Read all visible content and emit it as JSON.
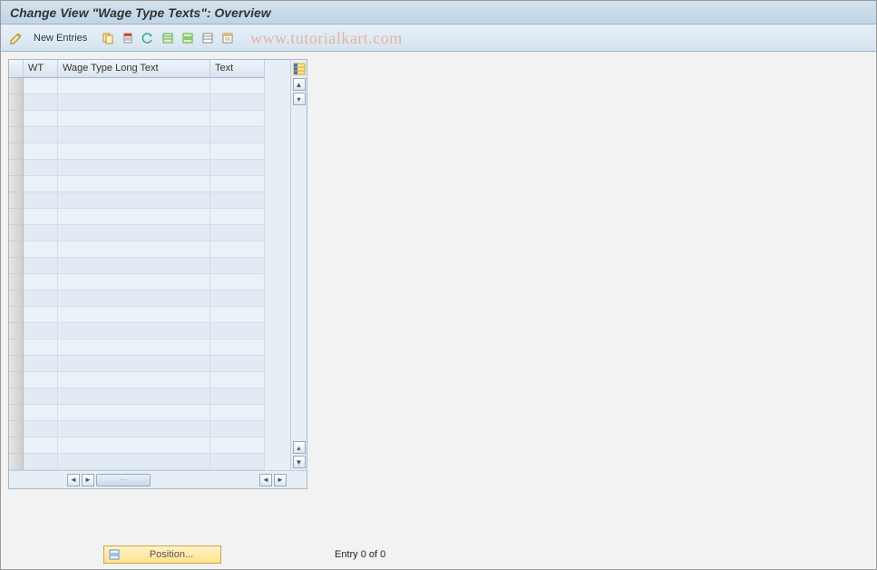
{
  "title": "Change View \"Wage Type Texts\": Overview",
  "toolbar": {
    "new_entries_label": "New Entries"
  },
  "watermark": "www.tutorialkart.com",
  "table": {
    "columns": {
      "selector": "",
      "wt": "WT",
      "long_text": "Wage Type Long Text",
      "text": "Text"
    },
    "row_count": 24,
    "column_widths": {
      "selector": 16,
      "wt": 38,
      "long": 168,
      "text": 60
    },
    "colors": {
      "header_bg_top": "#f0f5fa",
      "header_bg_bottom": "#d9e4ee",
      "row_bg": "#eaf1f8",
      "row_alt_bg": "#e2ebf3",
      "border": "#c0cede"
    }
  },
  "footer": {
    "position_label": "Position...",
    "entry_status": "Entry 0 of 0"
  },
  "colors": {
    "title_bg_top": "#d3e1ed",
    "title_bg_bottom": "#c1d5e6",
    "toolbar_bg_top": "#e8f0f8",
    "toolbar_bg_bottom": "#d6e4f0",
    "page_bg": "#f2f2f2",
    "watermark_color": "rgba(231,143,106,0.6)",
    "position_btn_top": "#fff2c8",
    "position_btn_bottom": "#ffe28a"
  }
}
